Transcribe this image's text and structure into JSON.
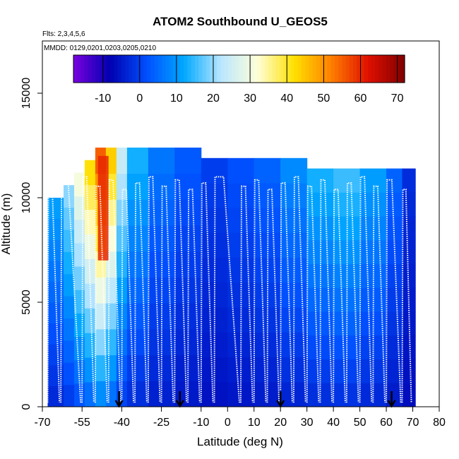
{
  "chart_data": {
    "type": "heatmap",
    "title": "ATOM2 Southbound U_GEOS5",
    "annotations": [
      "Flts: 2,3,4,5,6",
      "MMDD: 0129,0201,0203,0205,0210"
    ],
    "xlabel": "Latitude (deg N)",
    "ylabel": "Altitude (m)",
    "xlim": [
      -70,
      80
    ],
    "ylim": [
      0,
      17500
    ],
    "x_ticks": [
      -70,
      -55,
      -40,
      -25,
      -10,
      0,
      10,
      20,
      30,
      40,
      50,
      60,
      70,
      80
    ],
    "y_ticks": [
      0,
      5000,
      10000,
      15000
    ],
    "colorbar": {
      "range": [
        -18,
        72
      ],
      "ticks": [
        -10,
        0,
        10,
        20,
        30,
        40,
        50,
        60,
        70
      ],
      "palette": [
        "#7a00e0",
        "#0000b0",
        "#0050ff",
        "#00a8ff",
        "#b8e6ff",
        "#ffffd8",
        "#ffe000",
        "#ff8000",
        "#e01000",
        "#800000"
      ]
    },
    "flight_date_markers_lat": [
      -41,
      -18,
      20,
      62
    ],
    "columns": [
      {
        "lat": [
          -68,
          -62
        ],
        "top": 10000,
        "value": 10
      },
      {
        "lat": [
          -62,
          -58
        ],
        "top": 10600,
        "value": 18
      },
      {
        "lat": [
          -58,
          -54
        ],
        "top": 11200,
        "value": 28
      },
      {
        "lat": [
          -54,
          -50
        ],
        "top": 11800,
        "value": 38
      },
      {
        "lat": [
          -50,
          -46
        ],
        "top": 12400,
        "value": 50
      },
      {
        "lat": [
          -46,
          -42
        ],
        "top": 12400,
        "value": 40
      },
      {
        "lat": [
          -42,
          -38
        ],
        "top": 12400,
        "value": 22
      },
      {
        "lat": [
          -38,
          -30
        ],
        "top": 12400,
        "value": 12
      },
      {
        "lat": [
          -30,
          -20
        ],
        "top": 12400,
        "value": 6
      },
      {
        "lat": [
          -20,
          -10
        ],
        "top": 12400,
        "value": 3
      },
      {
        "lat": [
          -10,
          0
        ],
        "top": 11900,
        "value": 0
      },
      {
        "lat": [
          0,
          10
        ],
        "top": 11900,
        "value": 2
      },
      {
        "lat": [
          10,
          20
        ],
        "top": 11900,
        "value": 4
      },
      {
        "lat": [
          20,
          30
        ],
        "top": 11900,
        "value": 8
      },
      {
        "lat": [
          30,
          40
        ],
        "top": 11400,
        "value": 12
      },
      {
        "lat": [
          40,
          50
        ],
        "top": 11400,
        "value": 14
      },
      {
        "lat": [
          50,
          60
        ],
        "top": 11400,
        "value": 10
      },
      {
        "lat": [
          60,
          66
        ],
        "top": 11400,
        "value": 4
      },
      {
        "lat": [
          66,
          71
        ],
        "top": 11400,
        "value": -2
      }
    ],
    "profiles_lat": [
      -68,
      -63,
      -55,
      -50,
      -45,
      -40,
      -35,
      -30,
      -25,
      -20,
      -15,
      -10,
      -5,
      5,
      10,
      15,
      20,
      25,
      30,
      35,
      40,
      45,
      50,
      55,
      60,
      66,
      70
    ],
    "jet_core": {
      "lat_range": [
        -49,
        -45
      ],
      "alt_range": [
        7000,
        12000
      ],
      "value": 60
    }
  }
}
